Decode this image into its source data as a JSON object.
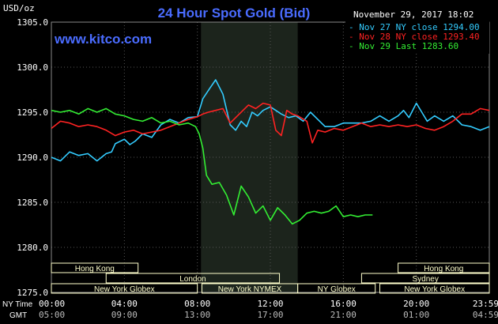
{
  "header": {
    "title": "24 Hour Spot Gold (Bid)",
    "currency_label": "USD/oz",
    "timestamp": "November 29, 2017 18:02",
    "website": "www.kitco.com"
  },
  "legend": [
    {
      "label": "Nov 27 NY close 1294.00",
      "color": "#33ccff"
    },
    {
      "label": "Nov 28 NY close 1293.40",
      "color": "#ff2222"
    },
    {
      "label": "Nov 29 Last 1283.60",
      "color": "#33ee33"
    }
  ],
  "time_labels": {
    "ny": "NY Time",
    "gmt": "GMT"
  },
  "sessions": [
    {
      "label": "Hong Kong",
      "start": 0,
      "end": 4.75,
      "row": 0
    },
    {
      "label": "London",
      "start": 3,
      "end": 12.5,
      "row": 1
    },
    {
      "label": "New York Globex",
      "start": 0,
      "end": 8,
      "row": 2
    },
    {
      "label": "New York NYMEX",
      "start": 8.25,
      "end": 13.5,
      "row": 2
    },
    {
      "label": "NY Globex",
      "start": 13.5,
      "end": 17.75,
      "row": 2
    },
    {
      "label": "Hong Kong",
      "start": 19,
      "end": 24,
      "row": 0
    },
    {
      "label": "Sydney",
      "start": 17,
      "end": 24,
      "row": 1
    },
    {
      "label": "New York Globex",
      "start": 18,
      "end": 24,
      "row": 2
    }
  ],
  "colors": {
    "background": "#000000",
    "plot_background": "#000000",
    "grid": "#555555",
    "highlight_band": "#1c241c",
    "title": "#4a6cff",
    "website": "#4a6cff",
    "session_box": "#ffffcc",
    "text": "#ffffff"
  },
  "chart_data": {
    "type": "line",
    "title": "24 Hour Spot Gold (Bid)",
    "ylabel": "USD/oz",
    "ylim": [
      1275,
      1305
    ],
    "yticks": [
      1275,
      1280,
      1285,
      1290,
      1295,
      1300,
      1305
    ],
    "ytick_labels": [
      "1275.0",
      "1280.0",
      "1285.0",
      "1290.0",
      "1295.0",
      "1300.0",
      "1305.0"
    ],
    "xlim": [
      0,
      24
    ],
    "xticks": [
      0,
      4,
      8,
      12,
      16,
      20,
      24
    ],
    "xtick_labels_ny": [
      "00:00",
      "04:00",
      "08:00",
      "12:00",
      "16:00",
      "20:00",
      "23:59"
    ],
    "xtick_labels_gmt": [
      "05:00",
      "09:00",
      "13:00",
      "17:00",
      "21:00",
      "01:00",
      "04:59"
    ],
    "highlight": {
      "start": 8.2,
      "end": 13.5
    },
    "grid": true,
    "series": [
      {
        "name": "Nov 27 NY close 1294.00",
        "color": "#33ccff",
        "x": [
          0,
          0.5,
          1,
          1.5,
          2,
          2.5,
          3,
          3.3,
          3.5,
          4,
          4.3,
          4.6,
          5,
          5.5,
          6,
          6.5,
          7,
          7.5,
          8,
          8.3,
          8.7,
          9,
          9.4,
          9.8,
          10.1,
          10.4,
          10.7,
          11,
          11.3,
          11.6,
          12,
          12.3,
          12.6,
          13,
          13.4,
          13.8,
          14.2,
          14.6,
          15,
          15.5,
          16,
          16.5,
          17,
          17.5,
          18,
          18.5,
          19,
          19.3,
          19.6,
          20,
          20.3,
          20.6,
          21,
          21.5,
          22,
          22.5,
          23,
          23.5,
          24
        ],
        "y": [
          1290,
          1289.6,
          1290.6,
          1290.2,
          1290.4,
          1289.6,
          1290.4,
          1290.6,
          1291.5,
          1292.0,
          1291.4,
          1291.8,
          1292.6,
          1292.2,
          1293.6,
          1294.2,
          1293.8,
          1294.4,
          1294.5,
          1296.5,
          1297.7,
          1298.6,
          1297.0,
          1293.6,
          1293.0,
          1294.0,
          1293.4,
          1295.0,
          1294.6,
          1295.2,
          1295.6,
          1295.2,
          1294.8,
          1294.4,
          1294.6,
          1294.0,
          1295.0,
          1294.2,
          1293.4,
          1293.4,
          1293.8,
          1293.8,
          1293.8,
          1294.0,
          1294.6,
          1294.0,
          1294.6,
          1295.2,
          1294.4,
          1296.0,
          1295.0,
          1294.0,
          1294.6,
          1294.0,
          1294.6,
          1293.6,
          1293.4,
          1293.0,
          1293.4
        ]
      },
      {
        "name": "Nov 28 NY close 1293.40",
        "color": "#ff2222",
        "x": [
          0,
          0.5,
          1,
          1.5,
          2,
          2.5,
          3,
          3.5,
          4,
          4.5,
          5,
          5.5,
          6,
          6.5,
          7,
          7.5,
          8,
          8.3,
          8.6,
          9,
          9.4,
          9.8,
          10.2,
          10.5,
          10.8,
          11.2,
          11.6,
          12,
          12.3,
          12.6,
          12.9,
          13.2,
          13.5,
          14,
          14.3,
          14.6,
          15,
          15.5,
          16,
          16.5,
          17,
          17.5,
          18,
          18.5,
          19,
          19.5,
          20,
          20.5,
          21,
          21.5,
          22,
          22.5,
          23,
          23.5,
          24
        ],
        "y": [
          1293.2,
          1294.0,
          1293.8,
          1293.4,
          1293.6,
          1293.4,
          1293.0,
          1292.4,
          1292.8,
          1293.0,
          1292.6,
          1292.8,
          1293.0,
          1293.4,
          1293.8,
          1294.2,
          1294.5,
          1294.8,
          1295.0,
          1295.2,
          1295.4,
          1293.8,
          1294.6,
          1295.2,
          1295.8,
          1295.4,
          1296.0,
          1295.8,
          1293.0,
          1292.4,
          1295.2,
          1294.8,
          1294.6,
          1294.0,
          1291.6,
          1293.0,
          1292.8,
          1293.2,
          1293.0,
          1293.4,
          1293.8,
          1293.4,
          1293.6,
          1293.4,
          1293.6,
          1293.4,
          1293.6,
          1293.2,
          1293.0,
          1293.4,
          1294.0,
          1294.8,
          1294.8,
          1295.4,
          1295.2
        ]
      },
      {
        "name": "Nov 29 Last 1283.60",
        "color": "#33ee33",
        "x": [
          0,
          0.5,
          1,
          1.5,
          2,
          2.5,
          3,
          3.5,
          4,
          4.5,
          5,
          5.5,
          6,
          6.5,
          7,
          7.5,
          7.9,
          8.1,
          8.3,
          8.5,
          8.8,
          9.2,
          9.6,
          10,
          10.4,
          10.8,
          11.2,
          11.6,
          12,
          12.4,
          12.8,
          13.2,
          13.6,
          14,
          14.4,
          14.8,
          15.2,
          15.6,
          16,
          16.4,
          16.8,
          17.2,
          17.6
        ],
        "y": [
          1295.2,
          1295.0,
          1295.2,
          1294.8,
          1295.4,
          1295.0,
          1295.4,
          1294.8,
          1294.6,
          1294.2,
          1294.0,
          1294.4,
          1293.8,
          1294.0,
          1293.6,
          1293.8,
          1293.4,
          1292.6,
          1291.0,
          1288.0,
          1287.0,
          1287.2,
          1285.8,
          1283.6,
          1286.8,
          1285.6,
          1283.8,
          1284.6,
          1283.0,
          1284.4,
          1283.6,
          1282.6,
          1283.0,
          1283.8,
          1284.0,
          1283.8,
          1284.0,
          1284.6,
          1283.4,
          1283.6,
          1283.4,
          1283.6,
          1283.6
        ]
      }
    ]
  }
}
